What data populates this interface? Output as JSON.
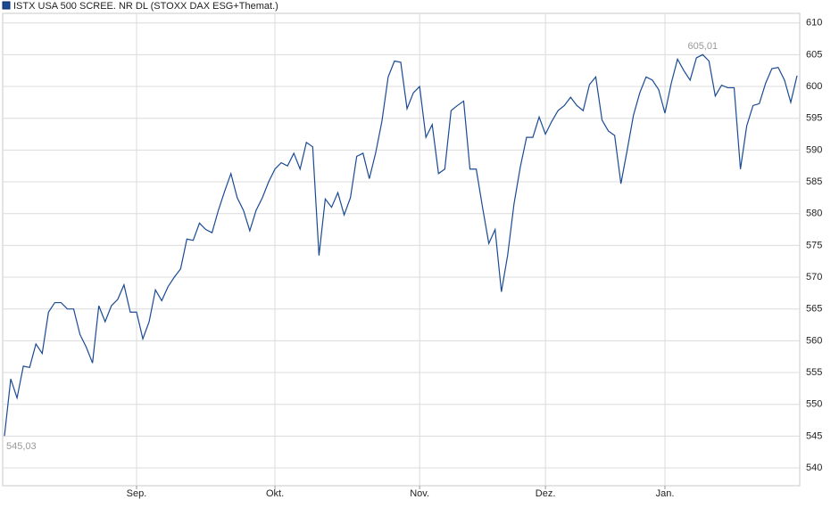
{
  "chart_data": {
    "type": "line",
    "series": [
      {
        "name": "ISTX USA 500 SCREE. NR DL (STOXX DAX ESG+Themat.)",
        "color": "#1a4a94",
        "values": [
          545.03,
          554,
          551,
          556,
          555.8,
          559.5,
          558,
          564.5,
          566,
          566,
          565,
          565,
          561,
          559,
          556.5,
          565.5,
          563,
          565.5,
          566.5,
          568.8,
          564.5,
          564.5,
          560.3,
          563,
          568,
          566.3,
          568.5,
          570,
          571.3,
          576,
          575.8,
          578.5,
          577.5,
          577,
          580.5,
          583.5,
          586.3,
          582.5,
          580.5,
          577.3,
          580.5,
          582.5,
          585,
          587,
          588,
          587.5,
          589.5,
          587,
          591.2,
          590.5,
          573.4,
          582.3,
          581,
          583.3,
          579.8,
          582.5,
          589,
          589.5,
          585.5,
          589.5,
          594.5,
          601.5,
          604,
          603.8,
          596.5,
          599,
          600,
          592,
          594,
          586.3,
          587,
          596.2,
          597,
          597.7,
          587,
          587,
          581,
          575.3,
          577.5,
          567.7,
          573.5,
          581.5,
          587.3,
          592,
          592,
          595.2,
          592.5,
          594.5,
          596.2,
          597,
          598.3,
          597,
          596.2,
          600.3,
          601.5,
          594.7,
          593,
          592.3,
          584.7,
          590,
          595.5,
          599,
          601.5,
          601,
          599.5,
          595.8,
          600.5,
          604.3,
          602.5,
          601,
          604.5,
          605.01,
          604,
          598.5,
          600.2,
          599.8,
          599.8,
          587,
          593.8,
          597,
          597.3,
          600.5,
          602.8,
          603,
          601,
          597.5,
          601.7
        ],
        "value_labels": [
          "545,03",
          null,
          null,
          null,
          null,
          null,
          null,
          null,
          null,
          null,
          null,
          null,
          null,
          null,
          null,
          null,
          null,
          null,
          null,
          null,
          null,
          null,
          null,
          null,
          null,
          null,
          null,
          null,
          null,
          null,
          null,
          null,
          null,
          null,
          null,
          null,
          null,
          null,
          null,
          null,
          null,
          null,
          null,
          null,
          null,
          null,
          null,
          null,
          null,
          null,
          null,
          null,
          null,
          null,
          null,
          null,
          null,
          null,
          null,
          null,
          null,
          null,
          null,
          null,
          null,
          null,
          null,
          null,
          null,
          null,
          null,
          null,
          null,
          null,
          null,
          null,
          null,
          null,
          null,
          null,
          null,
          null,
          null,
          null,
          null,
          null,
          null,
          null,
          null,
          null,
          null,
          null,
          null,
          null,
          null,
          null,
          null,
          null,
          null,
          null,
          null,
          null,
          null,
          null,
          null,
          null,
          null,
          null,
          null,
          null,
          null,
          "605,01",
          null,
          null,
          null,
          null,
          null,
          null,
          null,
          null,
          null,
          null,
          null,
          null,
          null,
          null,
          null
        ]
      }
    ],
    "xlim": [
      0,
      126
    ],
    "xticks": [
      {
        "value": 21,
        "label": "Sep."
      },
      {
        "value": 43,
        "label": "Okt."
      },
      {
        "value": 66,
        "label": "Nov."
      },
      {
        "value": 86,
        "label": "Dez."
      },
      {
        "value": 105,
        "label": "Jan."
      }
    ],
    "ylim": [
      537.2,
      611.5
    ],
    "yticks": [
      540,
      545,
      550,
      555,
      560,
      565,
      570,
      575,
      580,
      585,
      590,
      595,
      600,
      605,
      610
    ],
    "grid": true
  }
}
